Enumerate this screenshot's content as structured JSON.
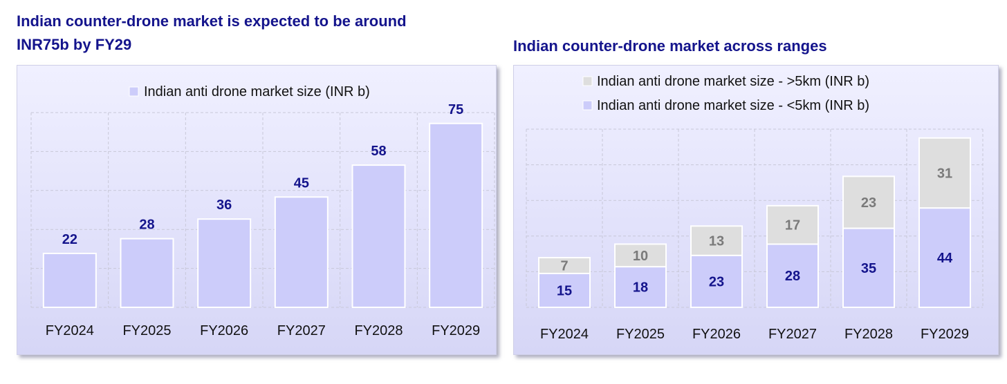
{
  "titles": {
    "left_line1": "Indian counter-drone market is expected to be around",
    "left_line2": "INR75b by FY29",
    "right": "Indian counter-drone market across ranges"
  },
  "colors": {
    "title": "#14148c",
    "bar_fill": "#ccccfa",
    "bar_stroke": "#ffffff",
    "gray_fill": "#dedede",
    "value_label": "#14148c",
    "gray_label": "#7a7a7a",
    "grid": "#c8c8d8"
  },
  "chart_data": [
    {
      "type": "bar",
      "title": "Indian counter-drone market is expected to be around INR75b by FY29",
      "categories": [
        "FY2024",
        "FY2025",
        "FY2026",
        "FY2027",
        "FY2028",
        "FY2029"
      ],
      "series": [
        {
          "name": "Indian anti drone market size (INR b)",
          "values": [
            22,
            28,
            36,
            45,
            58,
            75
          ]
        }
      ],
      "ylim": [
        0,
        80
      ],
      "grid": true,
      "legend": "top-center",
      "data_labels": true
    },
    {
      "type": "bar",
      "stacked": true,
      "title": "Indian counter-drone market across ranges",
      "categories": [
        "FY2024",
        "FY2025",
        "FY2026",
        "FY2027",
        "FY2028",
        "FY2029"
      ],
      "series": [
        {
          "name": "Indian anti drone market size - <5km (INR b)",
          "values": [
            15,
            18,
            23,
            28,
            35,
            44
          ]
        },
        {
          "name": "Indian anti drone market size - >5km (INR b)",
          "values": [
            7,
            10,
            13,
            17,
            23,
            31
          ]
        }
      ],
      "ylim": [
        0,
        90
      ],
      "grid": true,
      "legend": "top-center",
      "data_labels": true
    }
  ]
}
